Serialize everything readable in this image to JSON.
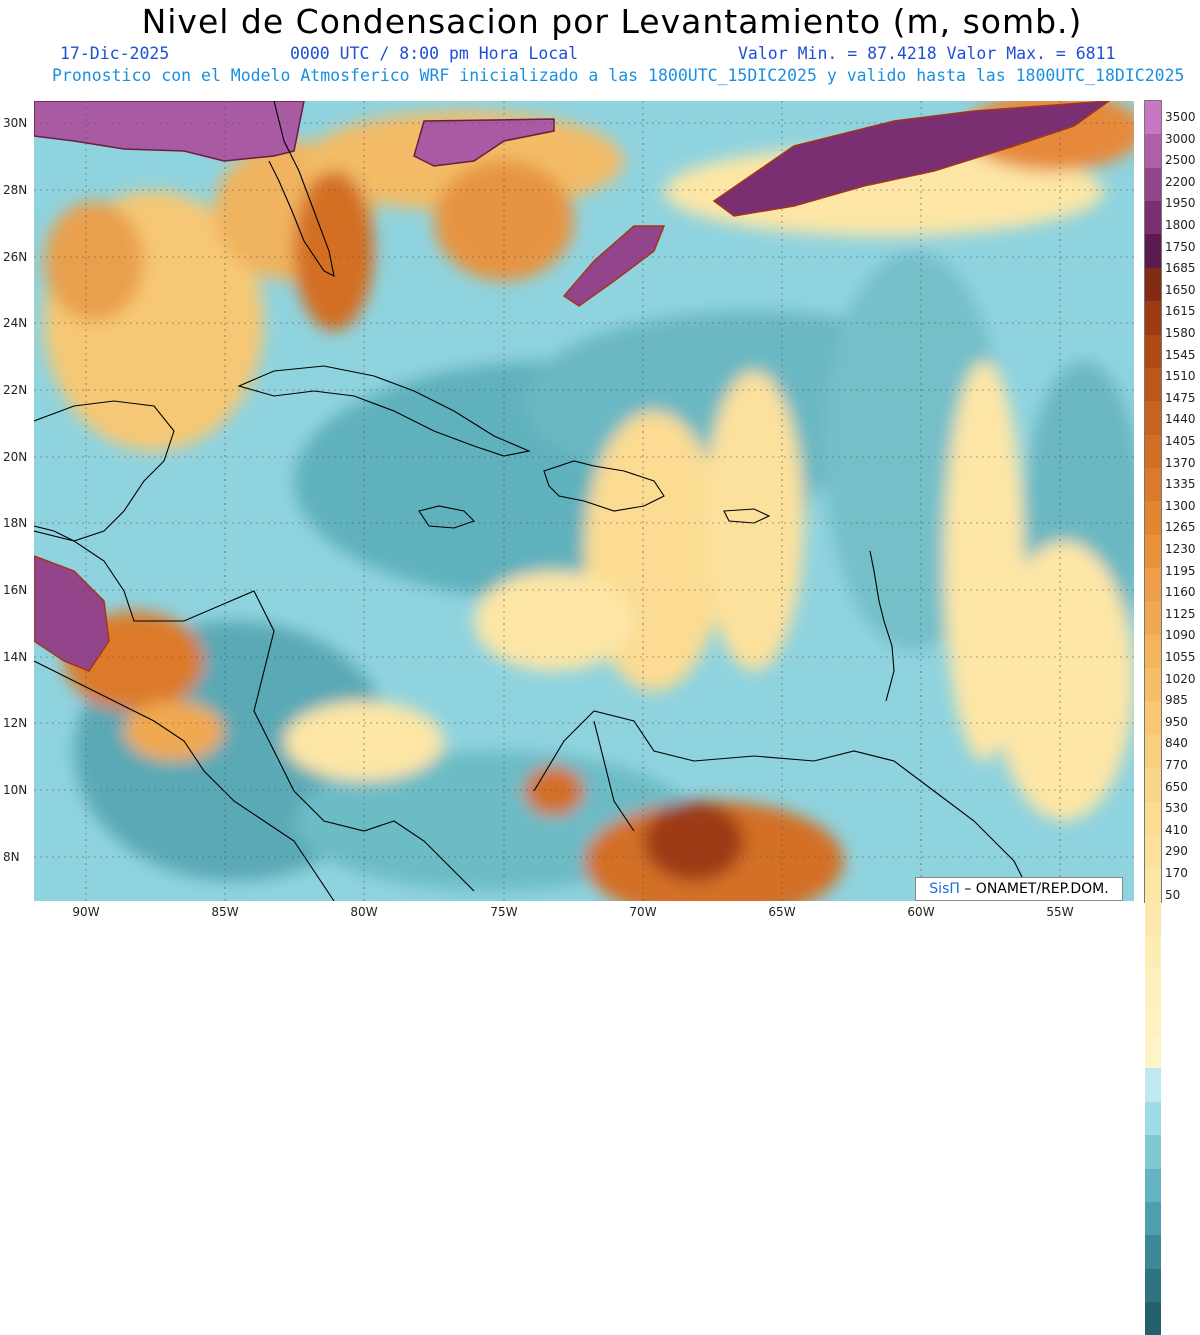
{
  "header": {
    "title": "Nivel de Condensacion por Levantamiento (m, somb.)",
    "date": "17-Dic-2025",
    "time": "0000 UTC / 8:00 pm Hora Local",
    "stats": "Valor Min. = 87.4218  Valor Max. = 6811",
    "model_line": "Pronostico con el Modelo Atmosferico WRF inicializado a las 1800UTC_15DIC2025 y valido hasta las  1800UTC_18DIC2025"
  },
  "axes": {
    "lat_labels": [
      "30N",
      "28N",
      "26N",
      "24N",
      "22N",
      "20N",
      "18N",
      "16N",
      "14N",
      "12N",
      "10N",
      "8N"
    ],
    "lon_labels": [
      "90W",
      "85W",
      "80W",
      "75W",
      "70W",
      "65W",
      "60W",
      "55W"
    ]
  },
  "colorbar": {
    "labels": [
      "3500",
      "3000",
      "2500",
      "2200",
      "1950",
      "1800",
      "1750",
      "1685",
      "1650",
      "1615",
      "1580",
      "1545",
      "1510",
      "1475",
      "1440",
      "1405",
      "1370",
      "1335",
      "1300",
      "1265",
      "1230",
      "1195",
      "1160",
      "1125",
      "1090",
      "1055",
      "1020",
      "985",
      "950",
      "840",
      "770",
      "650",
      "530",
      "410",
      "290",
      "170",
      "50"
    ],
    "colors": [
      "#c977c4",
      "#b05ea9",
      "#93458c",
      "#7a2f73",
      "#5c1b4f",
      "#822c16",
      "#9c3b14",
      "#b04a15",
      "#be5619",
      "#c9621f",
      "#d36e24",
      "#dc7a2a",
      "#e38632",
      "#e9923b",
      "#ed9e46",
      "#f1a951",
      "#f4b45c",
      "#f6be67",
      "#f8c772",
      "#f9cf7d",
      "#fad688",
      "#fbdc92",
      "#fce19c",
      "#fde6a6",
      "#fde9ae",
      "#feecb5",
      "#feefbc",
      "#fff1c2",
      "#fff4c8",
      "#bfe9ee",
      "#9fdbe4",
      "#80c9d3",
      "#63b4c0",
      "#4f9eab",
      "#3e8896",
      "#2f7381",
      "#255f6c"
    ]
  },
  "credit": {
    "brand": "SisΠ",
    "text": " – ONAMET/REP.DOM."
  }
}
